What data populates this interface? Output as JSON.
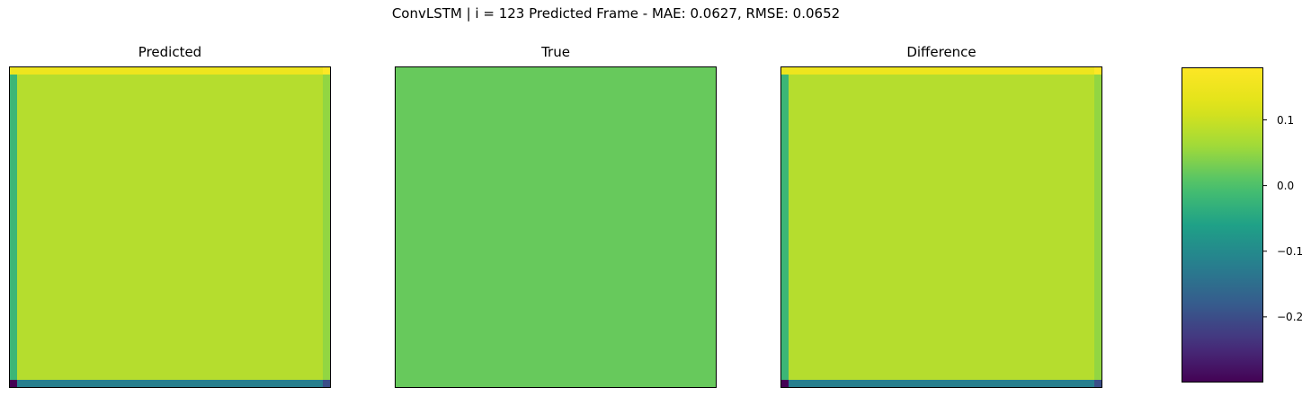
{
  "suptitle": "ConvLSTM | i = 123 Predicted Frame - MAE: 0.0627, RMSE: 0.0652",
  "chart_data": [
    {
      "type": "heatmap",
      "title": "Predicted",
      "grid": false,
      "axis_ticks": false,
      "colormap": "viridis",
      "vlim": [
        -0.3,
        0.18
      ],
      "interior_value": 0.08,
      "border_values": {
        "top": 0.15,
        "bottom": -0.12,
        "left": -0.02,
        "right": 0.05
      },
      "corner_values": {
        "top_left": 0.15,
        "top_right": 0.18,
        "bottom_left": -0.3,
        "bottom_right": -0.2
      }
    },
    {
      "type": "heatmap",
      "title": "True",
      "grid": false,
      "axis_ticks": false,
      "colormap": "viridis",
      "uniform_value": 0.02
    },
    {
      "type": "heatmap",
      "title": "Difference",
      "grid": false,
      "axis_ticks": false,
      "colormap": "viridis",
      "vlim": [
        -0.3,
        0.18
      ],
      "interior_value": 0.08,
      "border_values": {
        "top": 0.15,
        "bottom": -0.12,
        "left": -0.02,
        "right": 0.05
      },
      "corner_values": {
        "top_left": 0.15,
        "top_right": 0.18,
        "bottom_left": -0.3,
        "bottom_right": -0.2
      }
    }
  ],
  "colorbar": {
    "colormap": "viridis",
    "range": [
      -0.3,
      0.18
    ],
    "ticks": [
      {
        "value": 0.1,
        "label": "0.1"
      },
      {
        "value": 0.0,
        "label": "0.0"
      },
      {
        "value": -0.1,
        "label": "−0.1"
      },
      {
        "value": -0.2,
        "label": "−0.2"
      }
    ]
  },
  "colors": {
    "viridis_top": "#fde725",
    "viridis_upper": "#5cc863",
    "viridis_mid": "#21918c",
    "viridis_lower": "#3b528b",
    "viridis_bottom": "#440154"
  }
}
